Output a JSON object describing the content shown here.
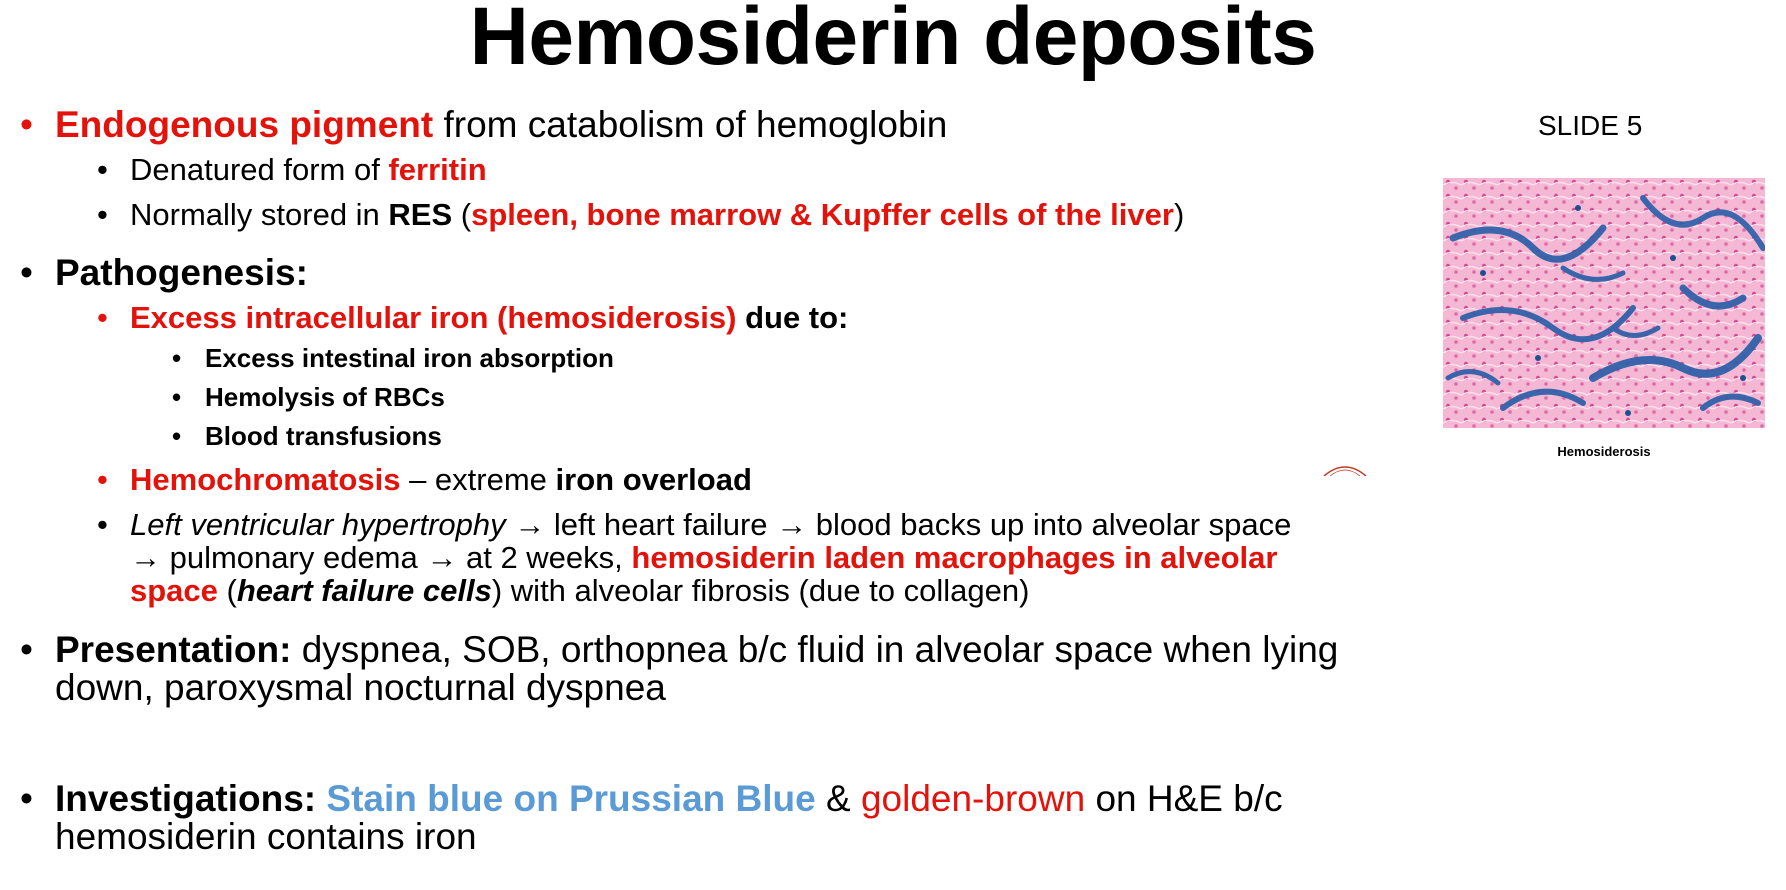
{
  "title": "Hemosiderin deposits",
  "slide_label": "SLIDE 5",
  "image_caption": "Hemosiderosis",
  "colors": {
    "red": "#e3120b",
    "blue": "#5b9bd5",
    "stain_pink": "#f2a6c9",
    "stain_blue": "#2c5fa8"
  },
  "bullets": {
    "endogenous": {
      "red": "Endogenous pigment",
      "rest": " from catabolism of hemoglobin"
    },
    "denatured": {
      "text": "Denatured form of ",
      "red": "ferritin"
    },
    "stored": {
      "text": "Normally stored in ",
      "bold": "RES",
      "open": " (",
      "red": "spleen, bone marrow & Kupffer cells of the liver",
      "close": ")"
    },
    "pathogenesis": "Pathogenesis:",
    "excess": {
      "red": "Excess intracellular iron (hemosiderosis)",
      "bold": " due to:"
    },
    "causes": [
      "Excess intestinal iron absorption",
      "Hemolysis of RBCs",
      "Blood transfusions"
    ],
    "hemochromatosis": {
      "red": "Hemochromatosis",
      "text": " – extreme ",
      "bold": "iron overload"
    },
    "lvh": {
      "italic": "Left ventricular hypertrophy",
      "line1_rest": " → left heart failure → blood backs up into alveolar space",
      "line2_text": "→ pulmonary edema → at 2 weeks, ",
      "line2_red": "hemosiderin laden macrophages in alveolar",
      "line3_red": "space",
      "line3_open": " (",
      "line3_bolditalic": "heart failure cells",
      "line3_rest": ") with alveolar fibrosis (due to collagen)"
    },
    "presentation": {
      "label": "Presentation:",
      "line1": " dyspnea, SOB, orthopnea b/c fluid in alveolar space when lying",
      "line2": "down, paroxysmal nocturnal dyspnea"
    },
    "investigations": {
      "label": "Investigations:",
      "blue": "Stain blue on Prussian Blue",
      "amp": " & ",
      "red": "golden-brown",
      "rest": " on H&E b/c",
      "line2": "hemosiderin contains iron"
    }
  }
}
